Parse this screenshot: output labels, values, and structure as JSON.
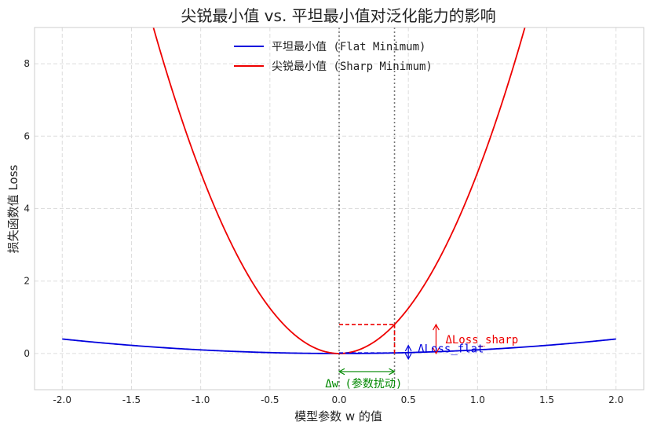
{
  "chart_data": {
    "type": "line",
    "title": "尖锐最小值 vs. 平坦最小值对泛化能力的影响",
    "xlabel": "模型参数 w 的值",
    "ylabel": "损失函数值 Loss",
    "xlim": [
      -2.2,
      2.2
    ],
    "ylim": [
      -1.0,
      9.0
    ],
    "x_ticks": [
      -2.0,
      -1.5,
      -1.0,
      -0.5,
      0.0,
      0.5,
      1.0,
      1.5,
      2.0
    ],
    "x_tick_labels": [
      "-2.0",
      "-1.5",
      "-1.0",
      "-0.5",
      "0.0",
      "0.5",
      "1.0",
      "1.5",
      "2.0"
    ],
    "y_ticks": [
      0,
      2,
      4,
      6,
      8
    ],
    "y_tick_labels": [
      "0",
      "2",
      "4",
      "6",
      "8"
    ],
    "grid": true,
    "legend_position": "top-center",
    "series": [
      {
        "name": "平坦最小值 (Flat Minimum)",
        "color": "#0000dd",
        "formula": "0.1*w^2",
        "coef": 0.1,
        "x_range": [
          -2.0,
          2.0
        ]
      },
      {
        "name": "尖锐最小值 (Sharp Minimum)",
        "color": "#ee0000",
        "formula": "5*w^2",
        "coef": 5.0,
        "x_range": [
          -2.0,
          2.0
        ]
      }
    ],
    "vertical_lines": [
      0.0,
      0.4
    ],
    "perturbation": {
      "w0": 0.0,
      "delta_w": 0.4,
      "loss_sharp": 0.8,
      "loss_flat": 0.016
    },
    "annotations": {
      "delta_loss_sharp": {
        "text": "ΔLoss_sharp",
        "x": 0.7,
        "y_range": [
          0.0,
          0.8
        ],
        "color": "#ee0000"
      },
      "delta_loss_flat": {
        "text": "ΔLoss_flat",
        "x": 0.5,
        "y_range": [
          -0.15,
          0.22
        ],
        "color": "#0000dd"
      },
      "delta_w": {
        "text": "Δw (参数扰动)",
        "x_range": [
          0.0,
          0.4
        ],
        "y": -0.5,
        "color": "#008800"
      }
    }
  }
}
